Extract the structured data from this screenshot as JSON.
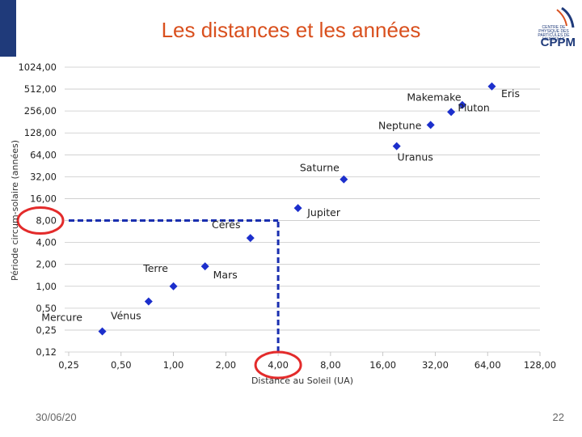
{
  "slide": {
    "title": "Les distances et les années",
    "date": "30/06/20",
    "page_number": "22",
    "logo_text": "CPPM",
    "logo_subtitle": "CENTRE DE PHYSIQUE DES PARTICULES DE MARSEILLE"
  },
  "colors": {
    "title": "#d9501e",
    "marker": "#1c2fcc",
    "highlight": "#e32b2b",
    "guide": "#1a2fb0"
  },
  "chart_data": {
    "type": "scatter",
    "title": "",
    "xlabel": "Distance au Soleil (UA)",
    "ylabel": "Période circum-solaire (années)",
    "xscale": "log2",
    "yscale": "log2",
    "xlim": [
      0.25,
      128
    ],
    "ylim": [
      0.125,
      1024
    ],
    "x_ticks": [
      0.25,
      0.5,
      1,
      2,
      4,
      8,
      16,
      32,
      64,
      128
    ],
    "x_tick_labels": [
      "0,25",
      "0,50",
      "1,00",
      "2,00",
      "4,00",
      "8,00",
      "16,00",
      "32,00",
      "64,00",
      "128,00"
    ],
    "y_ticks": [
      1024,
      512,
      256,
      128,
      64,
      32,
      16,
      8,
      4,
      2,
      1,
      0.5,
      0.25,
      0.125
    ],
    "y_tick_labels": [
      "1024,00",
      "512,00",
      "256,00",
      "128,00",
      "64,00",
      "32,00",
      "16,00",
      "8,00",
      "4,00",
      "2,00",
      "1,00",
      "0,50",
      "0,25",
      "0,12"
    ],
    "grid": "horizontal",
    "points": [
      {
        "name": "Mercure",
        "x": 0.39,
        "y": 0.24
      },
      {
        "name": "Vénus",
        "x": 0.72,
        "y": 0.62
      },
      {
        "name": "Terre",
        "x": 1.0,
        "y": 1.0
      },
      {
        "name": "Mars",
        "x": 1.52,
        "y": 1.88
      },
      {
        "name": "Cérès",
        "x": 2.77,
        "y": 4.6
      },
      {
        "name": "Jupiter",
        "x": 5.2,
        "y": 11.86
      },
      {
        "name": "Saturne",
        "x": 9.54,
        "y": 29.46
      },
      {
        "name": "Uranus",
        "x": 19.2,
        "y": 84.0
      },
      {
        "name": "Neptune",
        "x": 30.1,
        "y": 164.8
      },
      {
        "name": "Pluton",
        "x": 39.5,
        "y": 248.0
      },
      {
        "name": "Makemake",
        "x": 45.8,
        "y": 309.9
      },
      {
        "name": "Eris",
        "x": 67.7,
        "y": 557.0
      }
    ],
    "guide_lines": [
      {
        "name": "period-8-guide",
        "axis": "y",
        "value": 8,
        "from_x": 0.25,
        "to_x": 4
      },
      {
        "name": "distance-4-guide",
        "axis": "x",
        "value": 4,
        "from_y": 0.125,
        "to_y": 8
      }
    ],
    "highlights": [
      "8,00",
      "4,00"
    ]
  }
}
